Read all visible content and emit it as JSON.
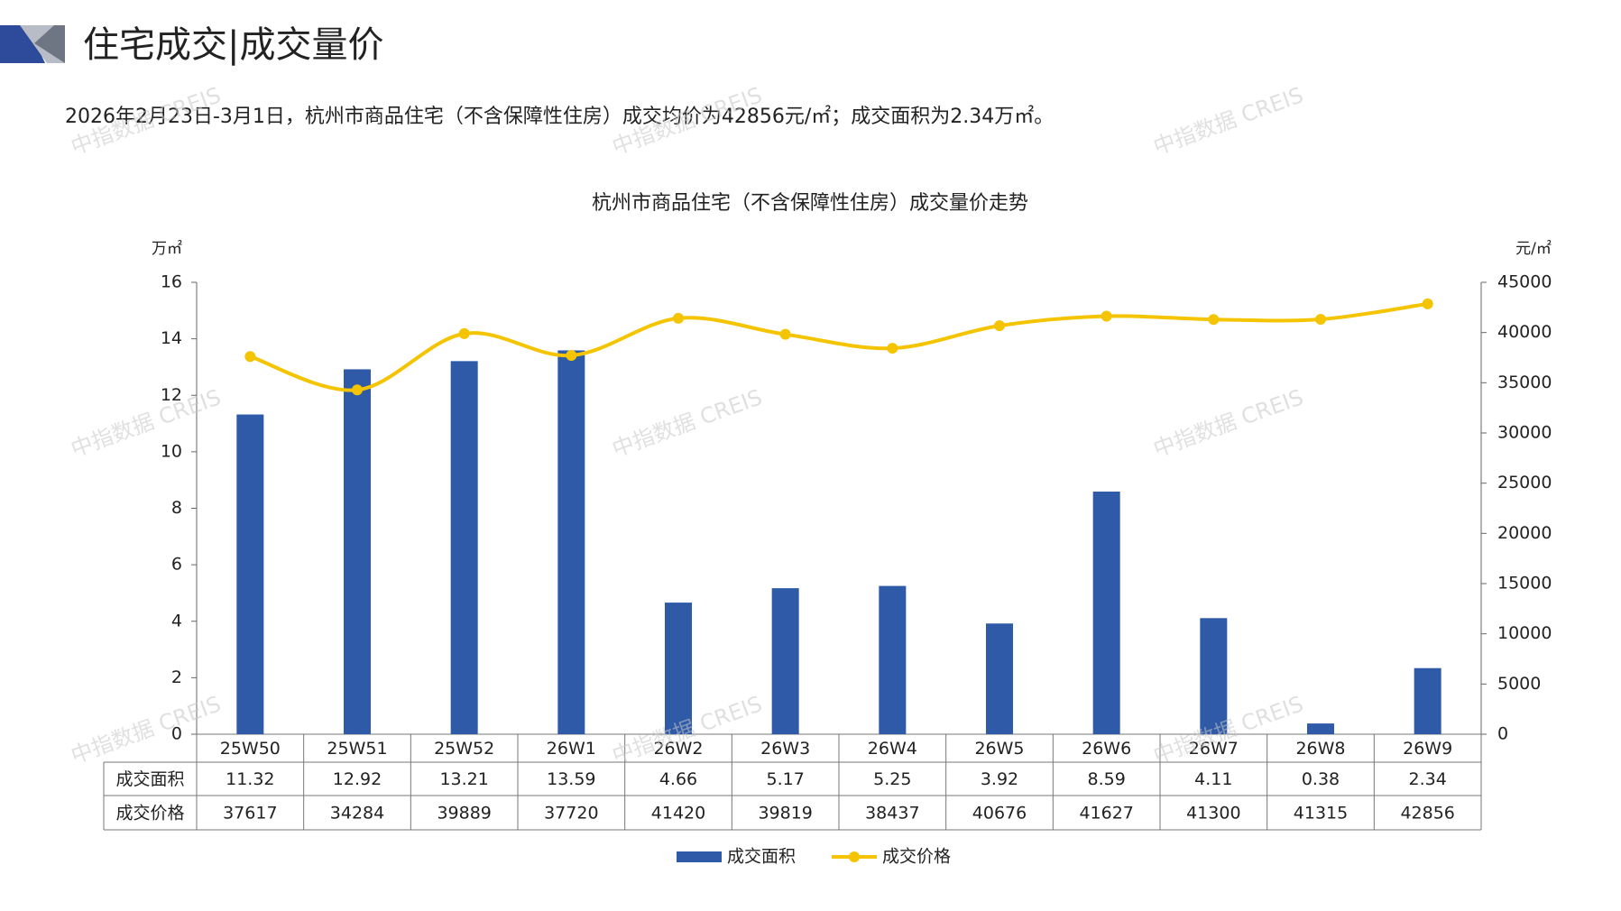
{
  "header": {
    "title": "住宅成交|成交量价",
    "subtitle": "2026年2月23日-3月1日，杭州市商品住宅（不含保障性住房）成交均价为42856元/㎡；成交面积为2.34万㎡。"
  },
  "watermark": "中指数据 CREIS",
  "chart_data": {
    "type": "bar",
    "title": "杭州市商品住宅（不含保障性住房）成交量价走势",
    "categories": [
      "25W50",
      "25W51",
      "25W52",
      "26W1",
      "26W2",
      "26W3",
      "26W4",
      "26W5",
      "26W6",
      "26W7",
      "26W8",
      "26W9"
    ],
    "series": [
      {
        "name": "成交面积",
        "type": "bar",
        "color": "#2e5aa8",
        "values": [
          11.32,
          12.92,
          13.21,
          13.59,
          4.66,
          5.17,
          5.25,
          3.92,
          8.59,
          4.11,
          0.38,
          2.34
        ]
      },
      {
        "name": "成交价格",
        "type": "line",
        "axis": "y2",
        "color": "#f5c400",
        "values": [
          37617,
          34284,
          39889,
          37720,
          41420,
          39819,
          38437,
          40676,
          41627,
          41300,
          41315,
          42856
        ]
      }
    ],
    "y_label": "万㎡",
    "y2_label": "元/㎡",
    "ylim": [
      0,
      16
    ],
    "yticks": [
      0,
      2,
      4,
      6,
      8,
      10,
      12,
      14,
      16
    ],
    "y2lim": [
      0,
      45000
    ],
    "y2ticks": [
      0,
      5000,
      10000,
      15000,
      20000,
      25000,
      30000,
      35000,
      40000,
      45000
    ],
    "legend": "bottom"
  }
}
